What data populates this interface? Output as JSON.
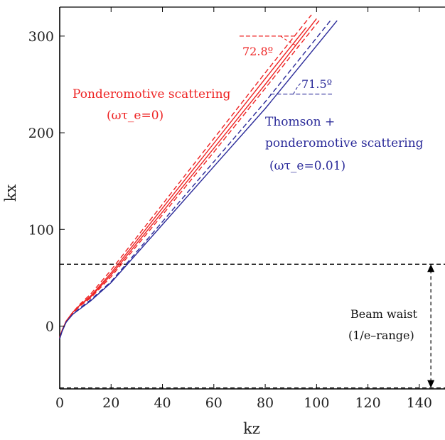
{
  "chart_data": {
    "type": "line",
    "title": "",
    "xlabel": "kz",
    "ylabel": "kx",
    "xlim": [
      0,
      150
    ],
    "ylim": [
      -65,
      330
    ],
    "x_ticks": [
      0,
      20,
      40,
      60,
      80,
      100,
      120,
      140
    ],
    "y_ticks": [
      0,
      100,
      200,
      300
    ],
    "colors": {
      "red": "#ee2222",
      "blue": "#2a2a99",
      "axis": "#000000"
    },
    "series": [
      {
        "color": "red",
        "dash": "solid",
        "points": [
          [
            0,
            -12
          ],
          [
            1,
            -4
          ],
          [
            2.5,
            5
          ],
          [
            5,
            14
          ],
          [
            8,
            22
          ],
          [
            12,
            31
          ],
          [
            20,
            55
          ],
          [
            40,
            122
          ],
          [
            60,
            189
          ],
          [
            80,
            256
          ],
          [
            96,
            309
          ]
        ]
      },
      {
        "color": "red",
        "dash": "dashed",
        "points": [
          [
            0,
            -12
          ],
          [
            1,
            -4
          ],
          [
            2.5,
            5
          ],
          [
            5,
            14
          ],
          [
            8,
            23
          ],
          [
            12,
            33
          ],
          [
            20,
            58
          ],
          [
            40,
            126
          ],
          [
            60,
            194
          ],
          [
            80,
            262
          ],
          [
            98,
            322
          ]
        ]
      },
      {
        "color": "red",
        "dash": "solid",
        "points": [
          [
            0,
            -12
          ],
          [
            1,
            -4
          ],
          [
            2.5,
            5
          ],
          [
            5,
            14
          ],
          [
            8,
            22
          ],
          [
            12,
            30
          ],
          [
            20,
            53
          ],
          [
            40,
            118
          ],
          [
            60,
            184
          ],
          [
            80,
            250
          ],
          [
            100,
            318
          ]
        ]
      },
      {
        "color": "red",
        "dash": "dashed",
        "points": [
          [
            0,
            -12
          ],
          [
            1,
            -4
          ],
          [
            2.5,
            5
          ],
          [
            5,
            13
          ],
          [
            8,
            21
          ],
          [
            12,
            29
          ],
          [
            20,
            51
          ],
          [
            40,
            115
          ],
          [
            60,
            180
          ],
          [
            80,
            246
          ],
          [
            101,
            316
          ]
        ]
      },
      {
        "color": "blue",
        "dash": "solid",
        "points": [
          [
            0,
            -13
          ],
          [
            1,
            -5
          ],
          [
            2.5,
            4
          ],
          [
            5,
            12
          ],
          [
            8,
            18
          ],
          [
            12,
            26
          ],
          [
            20,
            45
          ],
          [
            40,
            105
          ],
          [
            60,
            165
          ],
          [
            80,
            225
          ],
          [
            108,
            316
          ]
        ]
      },
      {
        "color": "blue",
        "dash": "dashed",
        "points": [
          [
            0,
            -13
          ],
          [
            1,
            -5
          ],
          [
            2.5,
            4
          ],
          [
            5,
            12
          ],
          [
            8,
            19
          ],
          [
            12,
            27
          ],
          [
            20,
            46
          ],
          [
            40,
            108
          ],
          [
            60,
            170
          ],
          [
            80,
            232
          ],
          [
            106,
            318
          ]
        ]
      }
    ],
    "reference_lines": [
      {
        "color": "axis",
        "y": 64
      },
      {
        "color": "axis",
        "y": -64
      }
    ],
    "angle_refs": [
      {
        "color": "red",
        "x": [
          70,
          92
        ],
        "y": 300
      },
      {
        "color": "blue",
        "x": [
          82,
          106
        ],
        "y": 240
      }
    ],
    "annotations": {
      "angle_red": "72.8º",
      "angle_blue": "71.5º",
      "ponder_line1": "Ponderomotive scattering",
      "ponder_line2": "(ωτ_e=0)",
      "thomson_line1": "Thomson +",
      "thomson_line2": "ponderomotive scattering",
      "thomson_line3": "(ωτ_e=0.01)",
      "waist_line1": "Beam waist",
      "waist_line2": "(1/e–range)"
    }
  }
}
